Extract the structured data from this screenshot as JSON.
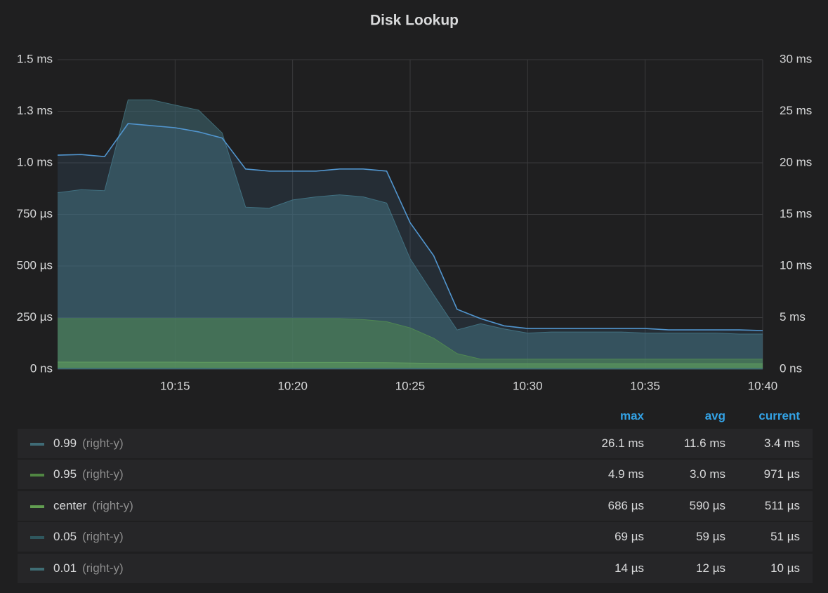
{
  "chart_data": {
    "type": "line",
    "title": "Disk Lookup",
    "x": [
      "10:10",
      "10:11",
      "10:12",
      "10:13",
      "10:14",
      "10:15",
      "10:16",
      "10:17",
      "10:18",
      "10:19",
      "10:20",
      "10:21",
      "10:22",
      "10:23",
      "10:24",
      "10:25",
      "10:26",
      "10:27",
      "10:28",
      "10:29",
      "10:30",
      "10:31",
      "10:32",
      "10:33",
      "10:34",
      "10:35",
      "10:36",
      "10:37",
      "10:38",
      "10:39",
      "10:40"
    ],
    "xlim": [
      "10:10",
      "10:40"
    ],
    "xticks": [
      "10:15",
      "10:20",
      "10:25",
      "10:30",
      "10:35",
      "10:40"
    ],
    "ylim": [
      0,
      1.5
    ],
    "yticks": [
      {
        "value": 0,
        "label": "0 ns"
      },
      {
        "value": 0.25,
        "label": "250 µs"
      },
      {
        "value": 0.5,
        "label": "500 µs"
      },
      {
        "value": 0.75,
        "label": "750 µs"
      },
      {
        "value": 1,
        "label": "1.0 ms"
      },
      {
        "value": 1.25,
        "label": "1.3 ms"
      },
      {
        "value": 1.5,
        "label": "1.5 ms"
      }
    ],
    "y2lim": [
      0,
      30
    ],
    "y2ticks": [
      {
        "value": 0,
        "label": "0 ns"
      },
      {
        "value": 5,
        "label": "5 ms"
      },
      {
        "value": 10,
        "label": "10 ms"
      },
      {
        "value": 15,
        "label": "15 ms"
      },
      {
        "value": 20,
        "label": "20 ms"
      },
      {
        "value": 25,
        "label": "25 ms"
      },
      {
        "value": 30,
        "label": "30 ms"
      }
    ],
    "grid": true,
    "stat_headers": [
      "max",
      "avg",
      "current"
    ],
    "series": [
      {
        "name": "0.99",
        "axis_label": "(right-y)",
        "axis": "y2",
        "color": "#3f6b76",
        "fill": true,
        "values": [
          17.1,
          17.4,
          17.3,
          26.1,
          26.1,
          25.6,
          25.1,
          22.9,
          15.7,
          15.6,
          16.4,
          16.7,
          16.9,
          16.7,
          16.1,
          10.7,
          7.2,
          3.8,
          4.4,
          3.9,
          3.5,
          3.6,
          3.6,
          3.6,
          3.6,
          3.5,
          3.5,
          3.5,
          3.5,
          3.4,
          3.4
        ],
        "max": "26.1 ms",
        "avg": "11.6 ms",
        "current": "3.4 ms"
      },
      {
        "name": "0.95",
        "axis_label": "(right-y)",
        "axis": "y2",
        "color": "#508642",
        "fill": true,
        "values": [
          4.9,
          4.9,
          4.9,
          4.9,
          4.9,
          4.9,
          4.9,
          4.9,
          4.9,
          4.9,
          4.9,
          4.9,
          4.9,
          4.8,
          4.6,
          4.0,
          3.0,
          1.5,
          0.97,
          0.97,
          0.97,
          0.97,
          0.97,
          0.97,
          0.97,
          0.97,
          0.97,
          0.97,
          0.97,
          0.97,
          0.97
        ],
        "max": "4.9 ms",
        "avg": "3.0 ms",
        "current": "971 µs"
      },
      {
        "name": "center",
        "axis_label": "(right-y)",
        "axis": "y2",
        "color": "#629e51",
        "fill": true,
        "values": [
          0.686,
          0.68,
          0.68,
          0.68,
          0.68,
          0.68,
          0.67,
          0.67,
          0.66,
          0.66,
          0.65,
          0.65,
          0.65,
          0.64,
          0.63,
          0.6,
          0.56,
          0.53,
          0.52,
          0.52,
          0.52,
          0.52,
          0.52,
          0.52,
          0.51,
          0.51,
          0.51,
          0.51,
          0.51,
          0.51,
          0.511
        ],
        "max": "686 µs",
        "avg": "590 µs",
        "current": "511 µs"
      },
      {
        "name": "0.05",
        "axis_label": "(right-y)",
        "axis": "y2",
        "color": "#2f575e",
        "fill": true,
        "values": [
          0.069,
          0.068,
          0.068,
          0.066,
          0.066,
          0.065,
          0.065,
          0.064,
          0.063,
          0.062,
          0.062,
          0.062,
          0.061,
          0.061,
          0.06,
          0.058,
          0.055,
          0.053,
          0.052,
          0.052,
          0.052,
          0.052,
          0.052,
          0.051,
          0.051,
          0.051,
          0.051,
          0.051,
          0.051,
          0.051,
          0.051
        ],
        "max": "69 µs",
        "avg": "59 µs",
        "current": "51 µs"
      },
      {
        "name": "0.01",
        "axis_label": "(right-y)",
        "axis": "y2",
        "color": "#3f6d74",
        "fill": true,
        "values": [
          0.014,
          0.014,
          0.014,
          0.013,
          0.013,
          0.013,
          0.013,
          0.013,
          0.012,
          0.012,
          0.012,
          0.012,
          0.012,
          0.012,
          0.012,
          0.011,
          0.011,
          0.011,
          0.01,
          0.01,
          0.01,
          0.01,
          0.01,
          0.01,
          0.01,
          0.01,
          0.01,
          0.01,
          0.01,
          0.01,
          0.01
        ],
        "max": "14 µs",
        "avg": "12 µs",
        "current": "10 µs"
      },
      {
        "axis": "y",
        "color": "#5195ce",
        "fill": true,
        "values": [
          1.037,
          1.04,
          1.03,
          1.19,
          1.18,
          1.17,
          1.15,
          1.12,
          0.97,
          0.96,
          0.96,
          0.96,
          0.97,
          0.97,
          0.96,
          0.71,
          0.55,
          0.29,
          0.245,
          0.21,
          0.197,
          0.197,
          0.197,
          0.197,
          0.197,
          0.197,
          0.19,
          0.19,
          0.19,
          0.19,
          0.187
        ]
      }
    ]
  }
}
